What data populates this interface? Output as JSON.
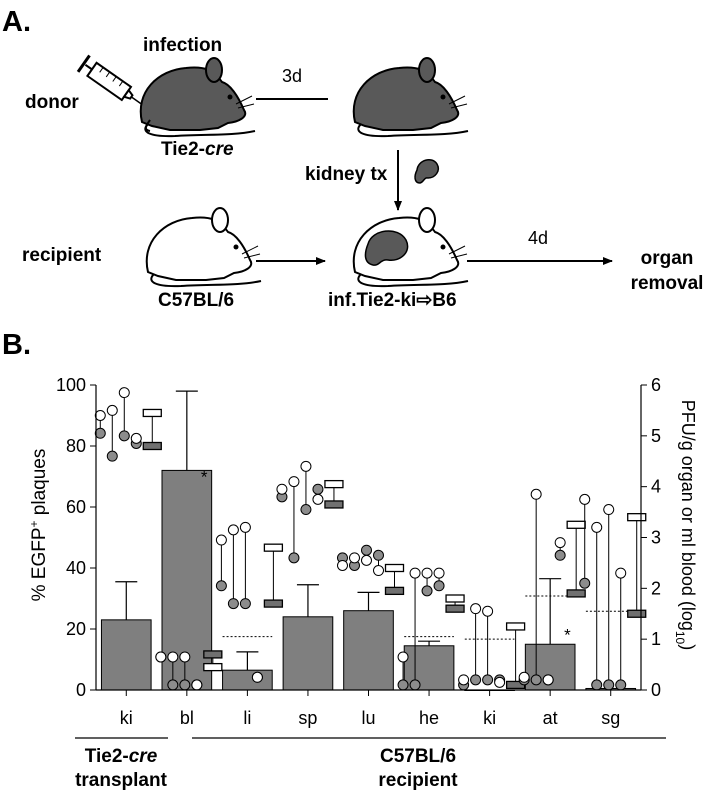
{
  "panel_a": {
    "label": "A.",
    "row_donor": "donor",
    "row_recipient": "recipient",
    "infection": "infection",
    "day3": "3d",
    "tie2_prefix": "Tie2-",
    "tie2_italic": "cre",
    "kidney_tx": "kidney tx",
    "c57": "C57BL/6",
    "inf_label": "inf.Tie2-ki⇨B6",
    "day4": "4d",
    "organ_line1": "organ",
    "organ_line2": "removal"
  },
  "panel_b": {
    "label": "B.",
    "group1_line1_prefix": "Tie2-",
    "group1_line1_italic": "cre",
    "group1_line2": "transplant",
    "group2_line1": "C57BL/6",
    "group2_line2": "recipient",
    "significance_marker": "*"
  },
  "chart_data": {
    "type": "bar",
    "categories": [
      "ki",
      "bl",
      "li",
      "sp",
      "lu",
      "he",
      "ki",
      "at",
      "sg"
    ],
    "ylabel_prefix": "% EGFP",
    "ylabel_sup": "+",
    "ylabel_suffix": " plaques",
    "y2label_main": "PFU/g organ or ml blood (log",
    "y2label_sub": "10",
    "y2label_end": ")",
    "ylim": [
      0,
      100
    ],
    "y2lim": [
      0,
      6
    ],
    "yticks": [
      "0",
      "20",
      "40",
      "60",
      "80",
      "100"
    ],
    "y2ticks": [
      "0",
      "1",
      "2",
      "3",
      "4",
      "5",
      "6"
    ],
    "series": [
      {
        "values": [
          23,
          72,
          6.5,
          24,
          26,
          14.5,
          0,
          15,
          0.5
        ],
        "error_upper": [
          35.5,
          98,
          12.5,
          34.5,
          32,
          16,
          0,
          36.5,
          0
        ]
      }
    ],
    "threshold_log10": [
      1.3,
      0,
      1.05,
      1.0,
      1.0,
      1.05,
      1.0,
      1.85,
      1.55
    ],
    "significance": [
      false,
      true,
      false,
      false,
      false,
      false,
      false,
      true,
      false
    ],
    "titer_log10": [
      {
        "pairs": [
          [
            5.4,
            5.05
          ],
          [
            5.5,
            4.6
          ],
          [
            5.85,
            5.0
          ],
          [
            4.95,
            4.85
          ]
        ],
        "median_open": 5.45,
        "median_filled": 4.8
      },
      {
        "pairs": [
          [
            0.65,
            0.65
          ],
          [
            0.65,
            0.1
          ],
          [
            0.65,
            0.1
          ],
          [
            0.1,
            0.1
          ]
        ],
        "median_open": 0.45,
        "median_filled": 0.7
      },
      {
        "pairs": [
          [
            2.95,
            2.05
          ],
          [
            3.15,
            1.7
          ],
          [
            3.2,
            1.7
          ],
          [
            0.25,
            0.25
          ]
        ],
        "median_open": 2.8,
        "median_filled": 1.7
      },
      {
        "pairs": [
          [
            3.95,
            3.8
          ],
          [
            4.1,
            2.6
          ],
          [
            4.4,
            3.55
          ],
          [
            3.75,
            3.95
          ]
        ],
        "median_open": 4.05,
        "median_filled": 3.65
      },
      {
        "pairs": [
          [
            2.45,
            2.6
          ],
          [
            2.6,
            2.45
          ],
          [
            2.55,
            2.75
          ],
          [
            2.35,
            2.65
          ]
        ],
        "median_open": 2.4,
        "median_filled": 1.95
      },
      {
        "pairs": [
          [
            0.65,
            0.1
          ],
          [
            2.3,
            0.1
          ],
          [
            2.3,
            1.95
          ],
          [
            2.3,
            2.05
          ]
        ],
        "median_open": 1.8,
        "median_filled": 1.6
      },
      {
        "pairs": [
          [
            0.2,
            0.1
          ],
          [
            1.6,
            0.2
          ],
          [
            1.55,
            0.2
          ],
          [
            0.15,
            0.2
          ]
        ],
        "median_open": 1.25,
        "median_filled": 0.1
      },
      {
        "pairs": [
          [
            0.25,
            0.2
          ],
          [
            3.85,
            0.2
          ],
          [
            0.2,
            0.2
          ],
          [
            2.9,
            2.65
          ]
        ],
        "median_open": 3.25,
        "median_filled": 1.9
      },
      {
        "pairs": [
          [
            3.75,
            2.1
          ],
          [
            3.2,
            0.1
          ],
          [
            3.55,
            0.1
          ],
          [
            2.3,
            0.1
          ]
        ],
        "median_open": 3.4,
        "median_filled": 1.5
      }
    ],
    "colors": {
      "bar": "#7f7f7f",
      "filled_circle": "#8c8c8c",
      "open_circle": "#ffffff",
      "median_filled": "#707070"
    }
  }
}
